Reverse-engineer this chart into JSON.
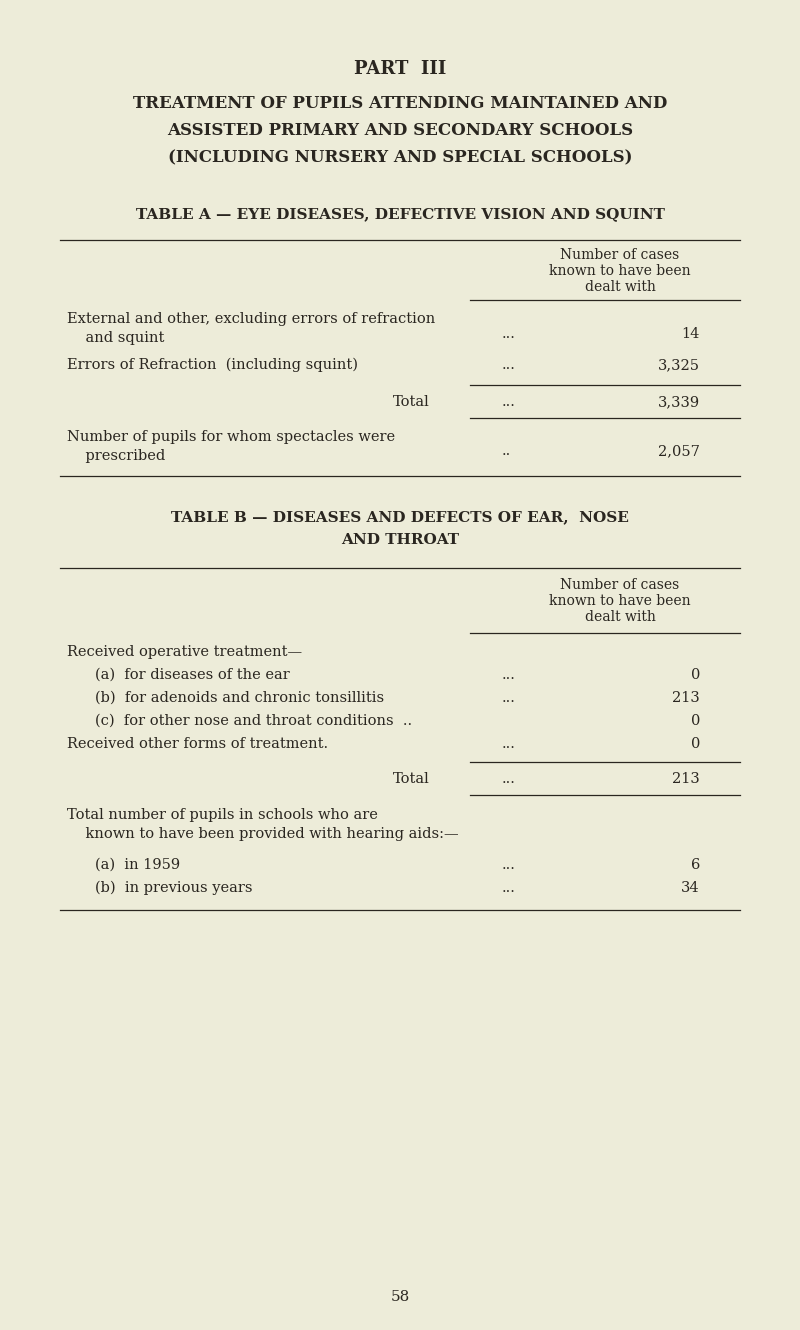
{
  "bg_color": "#edecd9",
  "text_color": "#2a2620",
  "part_title": "PART  III",
  "main_title_lines": [
    "TREATMENT OF PUPILS ATTENDING MAINTAINED AND",
    "ASSISTED PRIMARY AND SECONDARY SCHOOLS",
    "(INCLUDING NURSERY AND SPECIAL SCHOOLS)"
  ],
  "table_a_title": "TABLE A — EYE DISEASES, DEFECTIVE VISION AND SQUINT",
  "col_header_lines": [
    "Number of cases",
    "known to have been",
    "dealt with"
  ],
  "table_b_title_lines": [
    "TABLE B — DISEASES AND DEFECTS OF EAR,  NOSE",
    "AND THROAT"
  ],
  "col_header_b_lines": [
    "Number of cases",
    "known to have been",
    "dealt with"
  ],
  "page_number": "58"
}
